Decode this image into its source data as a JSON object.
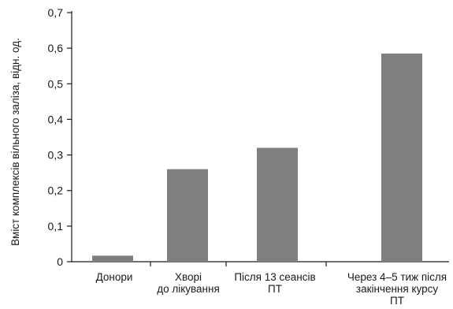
{
  "chart_data": {
    "type": "bar",
    "ylabel": "Вміст комплексів вільного заліза, відн. од.",
    "xlabel": "",
    "title": "",
    "ylim": [
      0,
      0.7
    ],
    "ytick_step": 0.1,
    "ytick_labels": [
      "0",
      "0,1",
      "0,2",
      "0,3",
      "0,4",
      "0,5",
      "0,6",
      "0,7"
    ],
    "grid": false,
    "categories": [
      [
        "Донори"
      ],
      [
        "Хворі",
        "до лікування"
      ],
      [
        "Після 13 сеансів",
        "ПТ"
      ],
      [
        "Через 4–5 тиж після",
        "закінчення курсу",
        "ПТ"
      ]
    ],
    "values": [
      0.017,
      0.26,
      0.32,
      0.585
    ],
    "bar_color": "#7f7f7f",
    "axis_color": "#1a1a1a"
  }
}
